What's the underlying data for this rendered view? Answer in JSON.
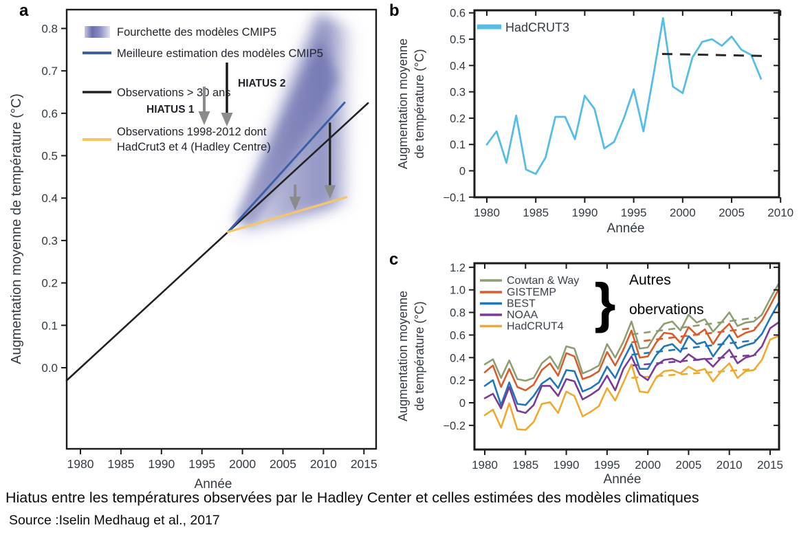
{
  "page": {
    "caption_line1": "Hiatus entre les températures observées par le Hadley Center et celles estimées des modèles climatiques",
    "caption_line2": "Source :Iselin Medhaug et al., 2017"
  },
  "panel_letters": {
    "a": "a",
    "b": "b",
    "c": "c"
  },
  "colors": {
    "axis": "#1b1b1b",
    "text": "#343a42",
    "cmip5_band": "#6a6fad",
    "cmip5_band_dark": "#565ba3",
    "cmip5_best": "#3c60a8",
    "obs30": "#222222",
    "obs_1998_2012": "#f6c565",
    "arrow_gray": "#8b8b8b",
    "hadcrut3": "#55bde6",
    "trend_b": "#26282b",
    "cowtan": "#8d9f72",
    "gistemp": "#d85c2c",
    "best": "#1f77b8",
    "noaa": "#7b3a98",
    "hadcrut4": "#efa92e"
  },
  "chart_data": [
    {
      "id": "a",
      "type": "line",
      "xlabel": "Année",
      "ylabel": "Augmentation moyenne de température (°C)",
      "xlim": [
        1978.3,
        2016.5
      ],
      "ylim": [
        -0.19,
        0.84
      ],
      "xticks": [
        1980,
        1985,
        1990,
        1995,
        2000,
        2005,
        2010,
        2015
      ],
      "yticks": [
        0.0,
        0.1,
        0.2,
        0.3,
        0.4,
        0.5,
        0.6,
        0.7,
        0.8
      ],
      "ytick_labels": [
        "0.0",
        "0.1",
        "0.2",
        "0.3",
        "0.4",
        "0.5",
        "0.6",
        "0.7",
        "0.8"
      ],
      "legend": [
        {
          "label": "Fourchette des modèles CMIP5",
          "swatch": "band",
          "color_key": "cmip5_band"
        },
        {
          "label": "Meilleure estimation des modèles CMIP5",
          "swatch": "line",
          "color_key": "cmip5_best"
        },
        {
          "label": "Observations > 30 ans",
          "swatch": "line",
          "color_key": "obs30"
        },
        {
          "label": "Observations 1998-2012 dont",
          "label2": "HadCrut3 et 4 (Hadley Centre)",
          "swatch": "line",
          "color_key": "obs_1998_2012"
        }
      ],
      "annotations": {
        "hiatus1": "HIATUS 1",
        "hiatus2": "HIATUS 2"
      },
      "series": [
        {
          "name": "Observations > 30 ans",
          "color_key": "obs30",
          "x": [
            1978.3,
            2015.5
          ],
          "y": [
            -0.03,
            0.624
          ],
          "width": 2.6
        },
        {
          "name": "Meilleure estimation des modèles CMIP5",
          "color_key": "cmip5_best",
          "x": [
            1998.2,
            2012.6
          ],
          "y": [
            0.32,
            0.625
          ],
          "width": 3
        },
        {
          "name": "Observations 1998-2012 dont HadCrut3 et 4 (Hadley Centre)",
          "color_key": "obs_1998_2012",
          "x": [
            1998.2,
            2012.8
          ],
          "y": [
            0.32,
            0.402
          ],
          "width": 3.2
        }
      ],
      "band": {
        "name": "Fourchette des modèles CMIP5",
        "apex": [
          1998.2,
          0.32
        ],
        "reach_year": 2013,
        "top_value": 0.84,
        "bottom_value": 0.41
      },
      "arrows": [
        {
          "name": "hiatus-1-gap",
          "x": 2006.5,
          "from": 0.432,
          "to": 0.371,
          "shaft_color_key": "arrow_gray"
        },
        {
          "name": "hiatus-2-gap",
          "x": 2010.8,
          "from": 0.578,
          "to": 0.398,
          "shaft_color_key": "obs30"
        }
      ]
    },
    {
      "id": "b",
      "type": "line",
      "xlabel": "Année",
      "ylabel_line1": "Augmentation moyenne",
      "ylabel_line2": "de température (°C)",
      "xlim": [
        1978.7,
        2010.4
      ],
      "ylim": [
        -0.1,
        0.61
      ],
      "xticks": [
        1980,
        1985,
        1990,
        1995,
        2000,
        2005,
        2010
      ],
      "yticks": [
        0.6,
        0.5,
        0.4,
        0.3,
        0.2,
        0.1,
        0,
        -0.1
      ],
      "ytick_labels": [
        "0.6",
        "0.5",
        "0.4",
        "0.3",
        "0.2",
        "0.1",
        "0",
        "−0.1"
      ],
      "legend": [
        {
          "label": "HadCRUT3",
          "color_key": "hadcrut3"
        }
      ],
      "series": [
        {
          "name": "HadCRUT3",
          "color_key": "hadcrut3",
          "x_start": 1980,
          "width": 2.8,
          "values": [
            0.1,
            0.15,
            0.03,
            0.21,
            0.005,
            -0.012,
            0.05,
            0.205,
            0.205,
            0.12,
            0.285,
            0.235,
            0.085,
            0.11,
            0.2,
            0.31,
            0.15,
            0.36,
            0.58,
            0.32,
            0.295,
            0.43,
            0.49,
            0.5,
            0.475,
            0.51,
            0.46,
            0.44,
            0.35
          ]
        }
      ],
      "trend": {
        "name": "moyenne-hiatus",
        "x": [
          1997.9,
          2008.6
        ],
        "y": [
          0.444,
          0.436
        ],
        "color_key": "trend_b"
      }
    },
    {
      "id": "c",
      "type": "line",
      "xlabel": "Année",
      "ylabel_line1": "Augmentation moyenne",
      "ylabel_line2": "de température (°C)",
      "xlim": [
        1978.7,
        2016.1
      ],
      "ylim": [
        -0.41,
        1.23
      ],
      "xticks": [
        1980,
        1985,
        1990,
        1995,
        2000,
        2005,
        2010,
        2015
      ],
      "yticks": [
        1.2,
        1.0,
        0.8,
        0.6,
        0.4,
        0.2,
        0,
        -0.2
      ],
      "ytick_labels": [
        "1.2",
        "1.0",
        "0.8",
        "0.6",
        "0.4",
        "0.2",
        "0",
        "−0.2"
      ],
      "legend_note_line1": "Autres",
      "legend_note_line2": "obervations",
      "legend_brace": "}",
      "series": [
        {
          "name": "Cowtan & Way",
          "color_key": "cowtan",
          "x_start": 1980,
          "width": 2.6,
          "values": [
            0.34,
            0.385,
            0.22,
            0.375,
            0.21,
            0.195,
            0.22,
            0.35,
            0.41,
            0.3,
            0.5,
            0.48,
            0.26,
            0.29,
            0.33,
            0.52,
            0.4,
            0.54,
            0.72,
            0.48,
            0.49,
            0.61,
            0.7,
            0.72,
            0.64,
            0.78,
            0.71,
            0.74,
            0.63,
            0.71,
            0.8,
            0.68,
            0.71,
            0.72,
            0.78,
            0.92,
            1.05
          ],
          "trend": {
            "x": [
              1998.0,
              2013.3
            ],
            "y": [
              0.605,
              0.755
            ]
          }
        },
        {
          "name": "GISTEMP",
          "color_key": "gistemp",
          "x_start": 1980,
          "width": 2.6,
          "values": [
            0.27,
            0.33,
            0.14,
            0.3,
            0.14,
            0.11,
            0.16,
            0.29,
            0.35,
            0.24,
            0.44,
            0.41,
            0.21,
            0.235,
            0.28,
            0.45,
            0.33,
            0.47,
            0.64,
            0.4,
            0.41,
            0.53,
            0.62,
            0.61,
            0.53,
            0.67,
            0.6,
            0.65,
            0.52,
            0.63,
            0.7,
            0.58,
            0.62,
            0.64,
            0.73,
            0.86,
            1.0
          ],
          "trend": {
            "x": [
              1998.0,
              2013.3
            ],
            "y": [
              0.535,
              0.665
            ]
          }
        },
        {
          "name": "BEST",
          "color_key": "best",
          "x_start": 1980,
          "width": 2.6,
          "values": [
            0.15,
            0.2,
            -0.02,
            0.18,
            -0.01,
            -0.02,
            0.06,
            0.17,
            0.22,
            0.13,
            0.29,
            0.28,
            0.1,
            0.13,
            0.18,
            0.32,
            0.22,
            0.38,
            0.52,
            0.3,
            0.3,
            0.42,
            0.5,
            0.52,
            0.45,
            0.59,
            0.52,
            0.54,
            0.41,
            0.51,
            0.6,
            0.48,
            0.51,
            0.53,
            0.61,
            0.75,
            0.88
          ],
          "trend": {
            "x": [
              1998.0,
              2013.3
            ],
            "y": [
              0.425,
              0.555
            ]
          }
        },
        {
          "name": "NOAA",
          "color_key": "noaa",
          "x_start": 1980,
          "width": 2.6,
          "values": [
            0.04,
            0.08,
            -0.05,
            0.14,
            -0.07,
            -0.09,
            -0.02,
            0.15,
            0.15,
            0.06,
            0.21,
            0.19,
            0.03,
            0.07,
            0.12,
            0.24,
            0.11,
            0.3,
            0.41,
            0.25,
            0.2,
            0.33,
            0.38,
            0.39,
            0.36,
            0.43,
            0.38,
            0.39,
            0.32,
            0.4,
            0.47,
            0.35,
            0.4,
            0.42,
            0.5,
            0.66,
            0.71
          ],
          "trend": {
            "x": [
              1998.0,
              2013.3
            ],
            "y": [
              0.33,
              0.425
            ]
          }
        },
        {
          "name": "HadCRUT4",
          "color_key": "hadcrut4",
          "x_start": 1980,
          "width": 2.6,
          "values": [
            -0.11,
            -0.06,
            -0.22,
            -0.005,
            -0.235,
            -0.24,
            -0.17,
            -0.01,
            0.005,
            -0.09,
            0.1,
            0.06,
            -0.12,
            -0.08,
            -0.03,
            0.13,
            0.02,
            0.18,
            0.34,
            0.1,
            0.09,
            0.22,
            0.28,
            0.29,
            0.26,
            0.32,
            0.28,
            0.3,
            0.19,
            0.28,
            0.35,
            0.22,
            0.28,
            0.29,
            0.38,
            0.56,
            0.59
          ],
          "trend": {
            "x": [
              1998.0,
              2013.3
            ],
            "y": [
              0.22,
              0.3
            ]
          }
        }
      ]
    }
  ]
}
